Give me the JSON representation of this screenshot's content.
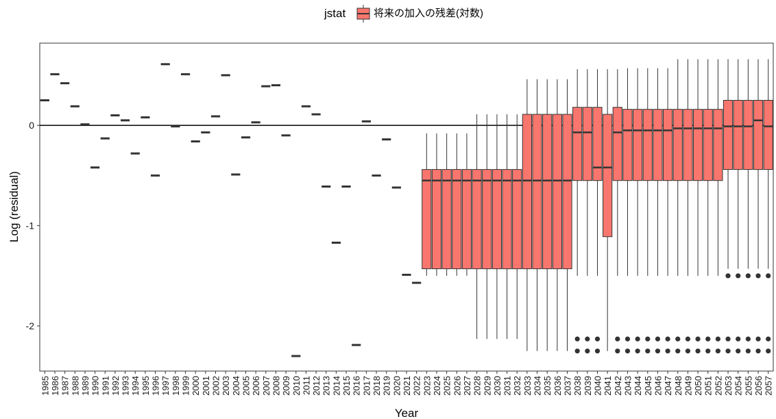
{
  "chart_data": {
    "type": "box",
    "xlabel": "Year",
    "ylabel": "Log (residual)",
    "ylim": [
      -2.45,
      0.82
    ],
    "yticks": [
      -2,
      -1,
      0
    ],
    "ytick_labels": [
      "-2",
      "-1",
      "0"
    ],
    "hline": 0,
    "grid": false,
    "legend": {
      "title": "jstat",
      "label": "将来の加入の残差(対数)",
      "position": "top"
    },
    "fill_color": "#F8766D",
    "outline_color": "#333333",
    "points": [
      {
        "year": "1985",
        "value": 0.25
      },
      {
        "year": "1986",
        "value": 0.51
      },
      {
        "year": "1987",
        "value": 0.42
      },
      {
        "year": "1988",
        "value": 0.19
      },
      {
        "year": "1989",
        "value": 0.01
      },
      {
        "year": "1990",
        "value": -0.42
      },
      {
        "year": "1991",
        "value": -0.13
      },
      {
        "year": "1992",
        "value": 0.1
      },
      {
        "year": "1993",
        "value": 0.05
      },
      {
        "year": "1994",
        "value": -0.28
      },
      {
        "year": "1995",
        "value": 0.08
      },
      {
        "year": "1996",
        "value": -0.5
      },
      {
        "year": "1997",
        "value": 0.61
      },
      {
        "year": "1998",
        "value": -0.01
      },
      {
        "year": "1999",
        "value": 0.51
      },
      {
        "year": "2000",
        "value": -0.16
      },
      {
        "year": "2001",
        "value": -0.07
      },
      {
        "year": "2002",
        "value": 0.09
      },
      {
        "year": "2003",
        "value": 0.5
      },
      {
        "year": "2004",
        "value": -0.49
      },
      {
        "year": "2005",
        "value": -0.12
      },
      {
        "year": "2006",
        "value": 0.03
      },
      {
        "year": "2007",
        "value": 0.39
      },
      {
        "year": "2008",
        "value": 0.4
      },
      {
        "year": "2009",
        "value": -0.1
      },
      {
        "year": "2010",
        "value": -2.3
      },
      {
        "year": "2011",
        "value": 0.19
      },
      {
        "year": "2012",
        "value": 0.11
      },
      {
        "year": "2013",
        "value": -0.61
      },
      {
        "year": "2014",
        "value": -1.17
      },
      {
        "year": "2015",
        "value": -0.61
      },
      {
        "year": "2016",
        "value": -2.19
      },
      {
        "year": "2017",
        "value": 0.04
      },
      {
        "year": "2018",
        "value": -0.5
      },
      {
        "year": "2019",
        "value": -0.14
      },
      {
        "year": "2020",
        "value": -0.62
      },
      {
        "year": "2021",
        "value": -1.49
      },
      {
        "year": "2022",
        "value": -1.57
      }
    ],
    "boxes": [
      {
        "year": "2023",
        "q1": -1.43,
        "median": -0.55,
        "q3": -0.44,
        "whisker_low": -1.5,
        "whisker_high": -0.08,
        "outliers": []
      },
      {
        "year": "2024",
        "q1": -1.43,
        "median": -0.55,
        "q3": -0.44,
        "whisker_low": -1.5,
        "whisker_high": -0.08,
        "outliers": []
      },
      {
        "year": "2025",
        "q1": -1.43,
        "median": -0.55,
        "q3": -0.44,
        "whisker_low": -1.5,
        "whisker_high": -0.08,
        "outliers": []
      },
      {
        "year": "2026",
        "q1": -1.43,
        "median": -0.55,
        "q3": -0.44,
        "whisker_low": -1.5,
        "whisker_high": -0.08,
        "outliers": []
      },
      {
        "year": "2027",
        "q1": -1.43,
        "median": -0.55,
        "q3": -0.44,
        "whisker_low": -1.5,
        "whisker_high": -0.08,
        "outliers": []
      },
      {
        "year": "2028",
        "q1": -1.43,
        "median": -0.55,
        "q3": -0.44,
        "whisker_low": -2.13,
        "whisker_high": 0.11,
        "outliers": []
      },
      {
        "year": "2029",
        "q1": -1.43,
        "median": -0.55,
        "q3": -0.44,
        "whisker_low": -2.13,
        "whisker_high": 0.11,
        "outliers": []
      },
      {
        "year": "2030",
        "q1": -1.43,
        "median": -0.55,
        "q3": -0.44,
        "whisker_low": -2.13,
        "whisker_high": 0.11,
        "outliers": []
      },
      {
        "year": "2031",
        "q1": -1.43,
        "median": -0.55,
        "q3": -0.44,
        "whisker_low": -2.13,
        "whisker_high": 0.11,
        "outliers": []
      },
      {
        "year": "2032",
        "q1": -1.43,
        "median": -0.55,
        "q3": -0.44,
        "whisker_low": -2.13,
        "whisker_high": 0.11,
        "outliers": []
      },
      {
        "year": "2033",
        "q1": -1.43,
        "median": -0.55,
        "q3": 0.11,
        "whisker_low": -2.25,
        "whisker_high": 0.46,
        "outliers": []
      },
      {
        "year": "2034",
        "q1": -1.43,
        "median": -0.55,
        "q3": 0.11,
        "whisker_low": -2.25,
        "whisker_high": 0.46,
        "outliers": []
      },
      {
        "year": "2035",
        "q1": -1.43,
        "median": -0.55,
        "q3": 0.11,
        "whisker_low": -2.25,
        "whisker_high": 0.46,
        "outliers": []
      },
      {
        "year": "2036",
        "q1": -1.43,
        "median": -0.55,
        "q3": 0.11,
        "whisker_low": -2.25,
        "whisker_high": 0.46,
        "outliers": []
      },
      {
        "year": "2037",
        "q1": -1.43,
        "median": -0.55,
        "q3": 0.11,
        "whisker_low": -2.25,
        "whisker_high": 0.46,
        "outliers": []
      },
      {
        "year": "2038",
        "q1": -0.55,
        "median": -0.07,
        "q3": 0.18,
        "whisker_low": -1.5,
        "whisker_high": 0.56,
        "outliers": [
          -2.13,
          -2.25
        ]
      },
      {
        "year": "2039",
        "q1": -0.55,
        "median": -0.07,
        "q3": 0.18,
        "whisker_low": -1.5,
        "whisker_high": 0.56,
        "outliers": [
          -2.13,
          -2.25
        ]
      },
      {
        "year": "2040",
        "q1": -0.55,
        "median": -0.42,
        "q3": 0.18,
        "whisker_low": -1.5,
        "whisker_high": 0.56,
        "outliers": [
          -2.13,
          -2.25
        ]
      },
      {
        "year": "2041",
        "q1": -1.11,
        "median": -0.42,
        "q3": 0.11,
        "whisker_low": -2.25,
        "whisker_high": 0.56,
        "outliers": []
      },
      {
        "year": "2042",
        "q1": -0.55,
        "median": -0.07,
        "q3": 0.18,
        "whisker_low": -1.5,
        "whisker_high": 0.56,
        "outliers": [
          -2.13,
          -2.25
        ]
      },
      {
        "year": "2043",
        "q1": -0.55,
        "median": -0.05,
        "q3": 0.16,
        "whisker_low": -1.5,
        "whisker_high": 0.57,
        "outliers": [
          -2.13,
          -2.25
        ]
      },
      {
        "year": "2044",
        "q1": -0.55,
        "median": -0.05,
        "q3": 0.16,
        "whisker_low": -1.5,
        "whisker_high": 0.57,
        "outliers": [
          -2.13,
          -2.25
        ]
      },
      {
        "year": "2045",
        "q1": -0.55,
        "median": -0.05,
        "q3": 0.16,
        "whisker_low": -1.5,
        "whisker_high": 0.57,
        "outliers": [
          -2.13,
          -2.25
        ]
      },
      {
        "year": "2046",
        "q1": -0.55,
        "median": -0.05,
        "q3": 0.16,
        "whisker_low": -1.5,
        "whisker_high": 0.57,
        "outliers": [
          -2.13,
          -2.25
        ]
      },
      {
        "year": "2047",
        "q1": -0.55,
        "median": -0.05,
        "q3": 0.16,
        "whisker_low": -1.5,
        "whisker_high": 0.57,
        "outliers": [
          -2.13,
          -2.25
        ]
      },
      {
        "year": "2048",
        "q1": -0.55,
        "median": -0.03,
        "q3": 0.16,
        "whisker_low": -1.5,
        "whisker_high": 0.66,
        "outliers": [
          -2.13,
          -2.25
        ]
      },
      {
        "year": "2049",
        "q1": -0.55,
        "median": -0.03,
        "q3": 0.16,
        "whisker_low": -1.5,
        "whisker_high": 0.66,
        "outliers": [
          -2.13,
          -2.25
        ]
      },
      {
        "year": "2050",
        "q1": -0.55,
        "median": -0.03,
        "q3": 0.16,
        "whisker_low": -1.5,
        "whisker_high": 0.66,
        "outliers": [
          -2.13,
          -2.25
        ]
      },
      {
        "year": "2051",
        "q1": -0.55,
        "median": -0.03,
        "q3": 0.16,
        "whisker_low": -1.5,
        "whisker_high": 0.66,
        "outliers": [
          -2.13,
          -2.25
        ]
      },
      {
        "year": "2052",
        "q1": -0.55,
        "median": -0.03,
        "q3": 0.16,
        "whisker_low": -1.5,
        "whisker_high": 0.66,
        "outliers": [
          -2.13,
          -2.25
        ]
      },
      {
        "year": "2053",
        "q1": -0.44,
        "median": -0.01,
        "q3": 0.25,
        "whisker_low": -1.43,
        "whisker_high": 0.66,
        "outliers": [
          -1.5,
          -2.13,
          -2.25
        ]
      },
      {
        "year": "2054",
        "q1": -0.44,
        "median": -0.01,
        "q3": 0.25,
        "whisker_low": -1.43,
        "whisker_high": 0.66,
        "outliers": [
          -1.5,
          -2.13,
          -2.25
        ]
      },
      {
        "year": "2055",
        "q1": -0.44,
        "median": -0.01,
        "q3": 0.25,
        "whisker_low": -1.43,
        "whisker_high": 0.66,
        "outliers": [
          -1.5,
          -2.13,
          -2.25
        ]
      },
      {
        "year": "2056",
        "q1": -0.44,
        "median": 0.05,
        "q3": 0.25,
        "whisker_low": -1.43,
        "whisker_high": 0.66,
        "outliers": [
          -1.5,
          -2.13,
          -2.25
        ]
      },
      {
        "year": "2057",
        "q1": -0.44,
        "median": -0.01,
        "q3": 0.25,
        "whisker_low": -1.43,
        "whisker_high": 0.66,
        "outliers": [
          -1.5,
          -2.13,
          -2.25
        ]
      }
    ]
  }
}
